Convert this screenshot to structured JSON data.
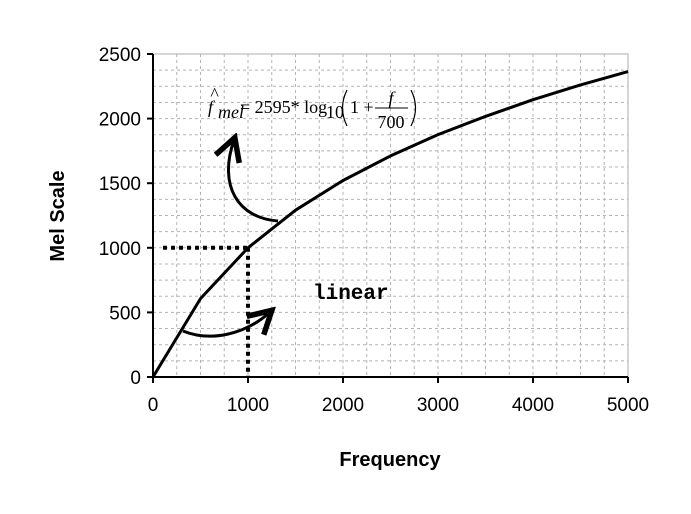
{
  "chart_data": {
    "type": "line",
    "title": "",
    "xlabel": "Frequency",
    "ylabel": "Mel Scale",
    "xlim": [
      0,
      5000
    ],
    "ylim": [
      0,
      2500
    ],
    "grid": true,
    "x_ticks": [
      "0",
      "1000",
      "2000",
      "3000",
      "4000",
      "5000"
    ],
    "y_ticks": [
      "0",
      "500",
      "1000",
      "1500",
      "2000",
      "2500"
    ],
    "series": [
      {
        "x": [
          0,
          500,
          1000,
          1500,
          2000,
          2500,
          3000,
          3500,
          4000,
          4500,
          5000
        ],
        "y": [
          0,
          607,
          1000,
          1291,
          1521,
          1711,
          1876,
          2017,
          2146,
          2261,
          2364
        ]
      }
    ],
    "reference_point": {
      "x": 1000,
      "y": 1000
    },
    "annotations": {
      "linear_label": "linear",
      "formula": {
        "lhs": "f",
        "subscript": "mel",
        "coefficient": "= 2595* log",
        "log_base": "10",
        "one_plus": "1 +",
        "numerator": "f",
        "denominator": "700"
      }
    }
  }
}
